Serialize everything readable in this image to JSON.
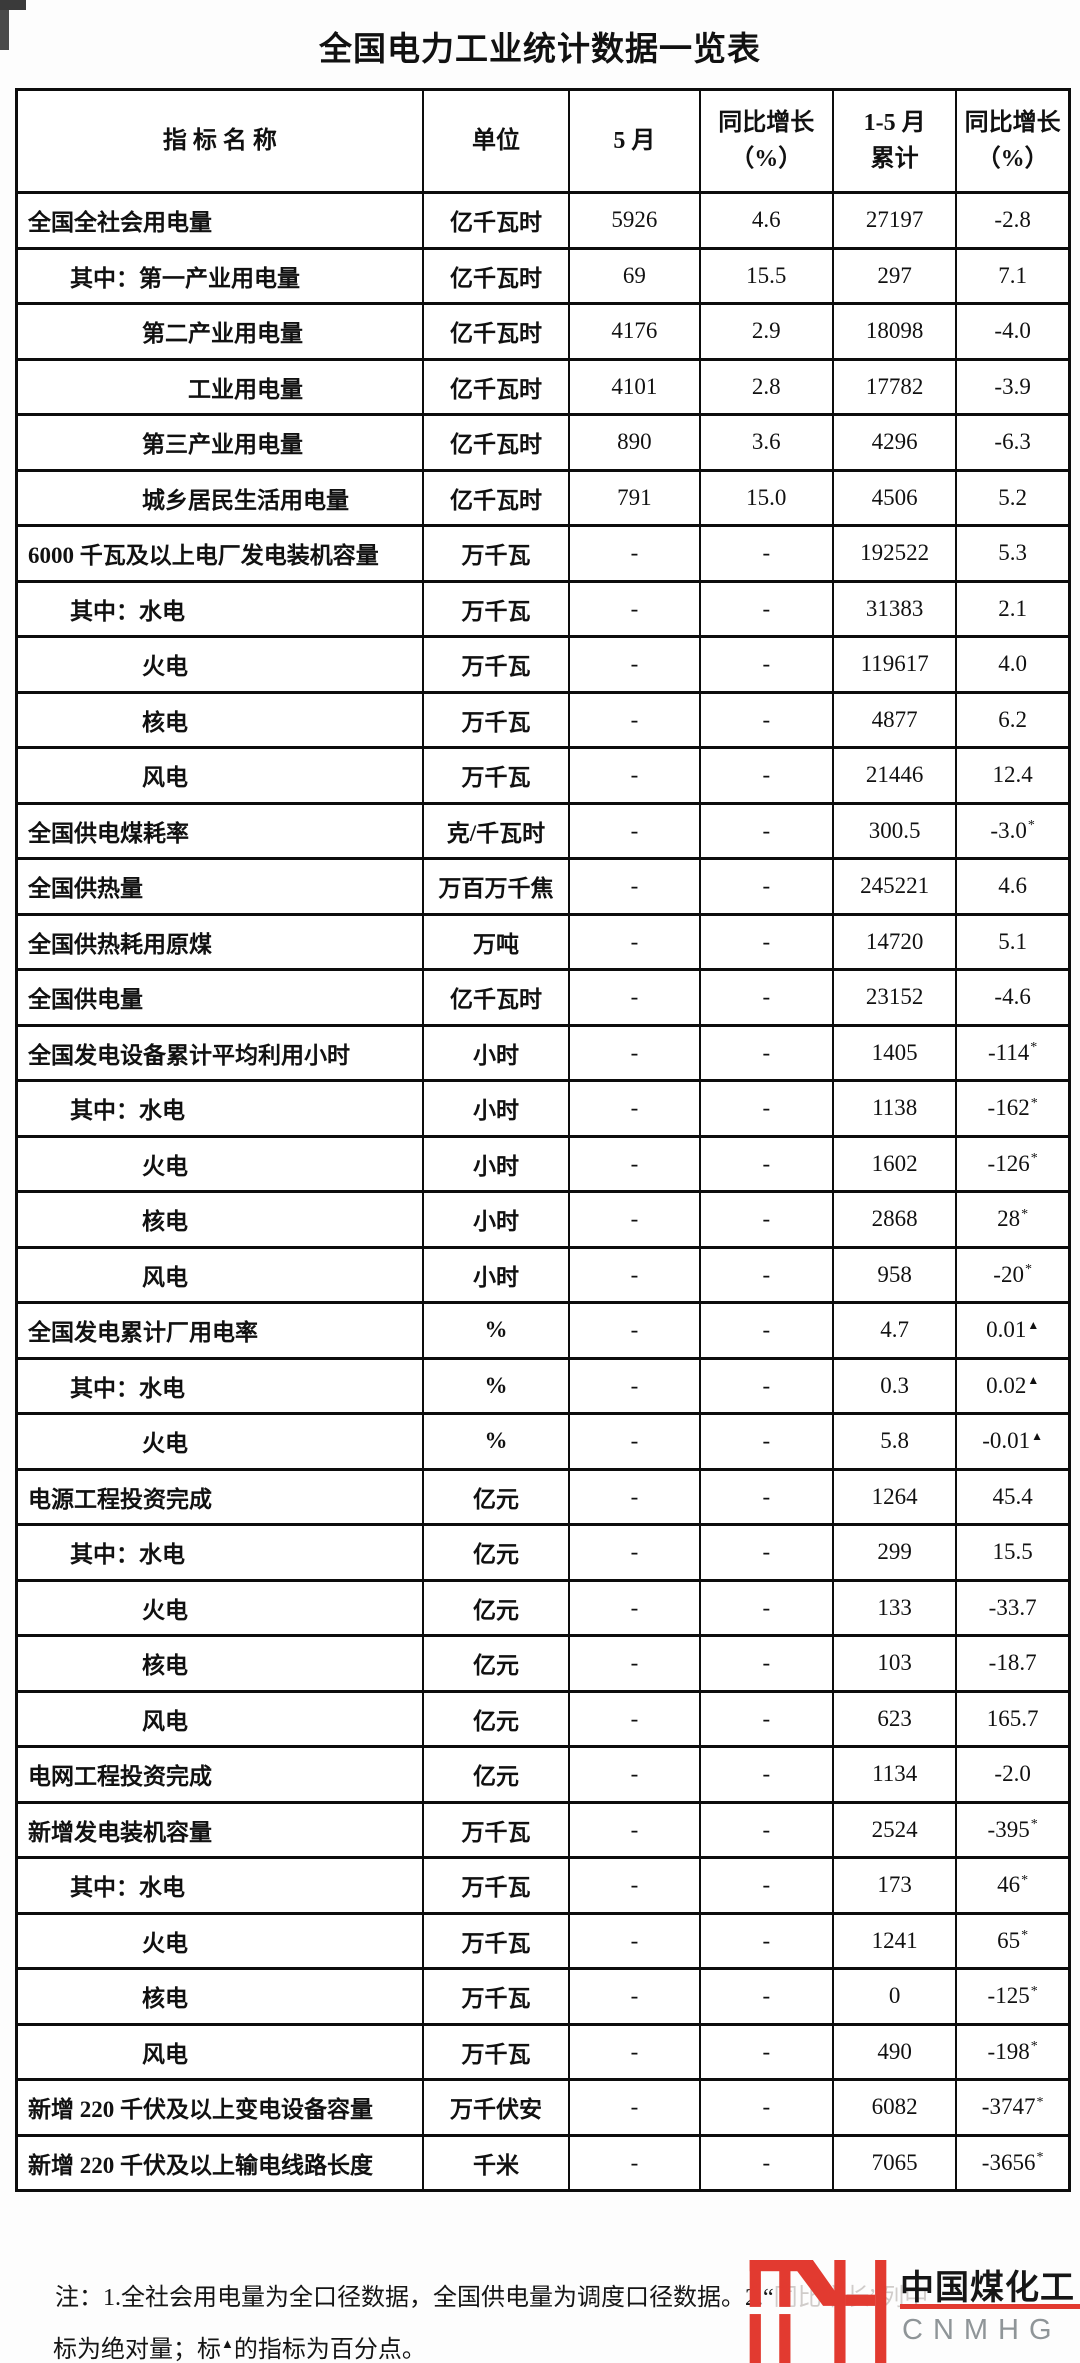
{
  "title": "全国电力工业统计数据一览表",
  "table": {
    "headers": {
      "name": "指  标  名  称",
      "unit": "单位",
      "may": "5 月",
      "yoy_may_l1": "同比增长",
      "yoy_may_l2": "（%）",
      "cum_l1": "1-5 月",
      "cum_l2": "累计",
      "yoy_cum_l1": "同比增长",
      "yoy_cum_l2": "（%）"
    },
    "rows": [
      {
        "name": "全国全社会用电量",
        "indent": 0,
        "unit": "亿千瓦时",
        "may": "5926",
        "yoy_may": "4.6",
        "cum": "27197",
        "yoy_cum": "-2.8",
        "sup": null
      },
      {
        "name": "其中：第一产业用电量",
        "indent": 1,
        "unit": "亿千瓦时",
        "may": "69",
        "yoy_may": "15.5",
        "cum": "297",
        "yoy_cum": "7.1",
        "sup": null
      },
      {
        "name": "第二产业用电量",
        "indent": 2,
        "unit": "亿千瓦时",
        "may": "4176",
        "yoy_may": "2.9",
        "cum": "18098",
        "yoy_cum": "-4.0",
        "sup": null
      },
      {
        "name": "工业用电量",
        "indent": 3,
        "unit": "亿千瓦时",
        "may": "4101",
        "yoy_may": "2.8",
        "cum": "17782",
        "yoy_cum": "-3.9",
        "sup": null
      },
      {
        "name": "第三产业用电量",
        "indent": 2,
        "unit": "亿千瓦时",
        "may": "890",
        "yoy_may": "3.6",
        "cum": "4296",
        "yoy_cum": "-6.3",
        "sup": null
      },
      {
        "name": "城乡居民生活用电量",
        "indent": 2,
        "unit": "亿千瓦时",
        "may": "791",
        "yoy_may": "15.0",
        "cum": "4506",
        "yoy_cum": "5.2",
        "sup": null
      },
      {
        "name": "6000 千瓦及以上电厂发电装机容量",
        "indent": 0,
        "unit": "万千瓦",
        "may": "-",
        "yoy_may": "-",
        "cum": "192522",
        "yoy_cum": "5.3",
        "sup": null
      },
      {
        "name": "其中：水电",
        "indent": 1,
        "unit": "万千瓦",
        "may": "-",
        "yoy_may": "-",
        "cum": "31383",
        "yoy_cum": "2.1",
        "sup": null
      },
      {
        "name": "火电",
        "indent": 2,
        "unit": "万千瓦",
        "may": "-",
        "yoy_may": "-",
        "cum": "119617",
        "yoy_cum": "4.0",
        "sup": null
      },
      {
        "name": "核电",
        "indent": 2,
        "unit": "万千瓦",
        "may": "-",
        "yoy_may": "-",
        "cum": "4877",
        "yoy_cum": "6.2",
        "sup": null
      },
      {
        "name": "风电",
        "indent": 2,
        "unit": "万千瓦",
        "may": "-",
        "yoy_may": "-",
        "cum": "21446",
        "yoy_cum": "12.4",
        "sup": null
      },
      {
        "name": "全国供电煤耗率",
        "indent": 0,
        "unit": "克/千瓦时",
        "may": "-",
        "yoy_may": "-",
        "cum": "300.5",
        "yoy_cum": "-3.0",
        "sup": "*"
      },
      {
        "name": "全国供热量",
        "indent": 0,
        "unit": "万百万千焦",
        "may": "-",
        "yoy_may": "-",
        "cum": "245221",
        "yoy_cum": "4.6",
        "sup": null
      },
      {
        "name": "全国供热耗用原煤",
        "indent": 0,
        "unit": "万吨",
        "may": "-",
        "yoy_may": "-",
        "cum": "14720",
        "yoy_cum": "5.1",
        "sup": null
      },
      {
        "name": "全国供电量",
        "indent": 0,
        "unit": "亿千瓦时",
        "may": "-",
        "yoy_may": "-",
        "cum": "23152",
        "yoy_cum": "-4.6",
        "sup": null
      },
      {
        "name": "全国发电设备累计平均利用小时",
        "indent": 0,
        "unit": "小时",
        "may": "-",
        "yoy_may": "-",
        "cum": "1405",
        "yoy_cum": "-114",
        "sup": "*"
      },
      {
        "name": "其中：水电",
        "indent": 1,
        "unit": "小时",
        "may": "-",
        "yoy_may": "-",
        "cum": "1138",
        "yoy_cum": "-162",
        "sup": "*"
      },
      {
        "name": "火电",
        "indent": 2,
        "unit": "小时",
        "may": "-",
        "yoy_may": "-",
        "cum": "1602",
        "yoy_cum": "-126",
        "sup": "*"
      },
      {
        "name": "核电",
        "indent": 2,
        "unit": "小时",
        "may": "-",
        "yoy_may": "-",
        "cum": "2868",
        "yoy_cum": "28",
        "sup": "*"
      },
      {
        "name": "风电",
        "indent": 2,
        "unit": "小时",
        "may": "-",
        "yoy_may": "-",
        "cum": "958",
        "yoy_cum": "-20",
        "sup": "*"
      },
      {
        "name": "全国发电累计厂用电率",
        "indent": 0,
        "unit": "%",
        "may": "-",
        "yoy_may": "-",
        "cum": "4.7",
        "yoy_cum": "0.01",
        "sup": "▲"
      },
      {
        "name": "其中：水电",
        "indent": 1,
        "unit": "%",
        "may": "-",
        "yoy_may": "-",
        "cum": "0.3",
        "yoy_cum": "0.02",
        "sup": "▲"
      },
      {
        "name": "火电",
        "indent": 2,
        "unit": "%",
        "may": "-",
        "yoy_may": "-",
        "cum": "5.8",
        "yoy_cum": "-0.01",
        "sup": "▲"
      },
      {
        "name": "电源工程投资完成",
        "indent": 0,
        "unit": "亿元",
        "may": "-",
        "yoy_may": "-",
        "cum": "1264",
        "yoy_cum": "45.4",
        "sup": null
      },
      {
        "name": "其中：水电",
        "indent": 1,
        "unit": "亿元",
        "may": "-",
        "yoy_may": "-",
        "cum": "299",
        "yoy_cum": "15.5",
        "sup": null
      },
      {
        "name": "火电",
        "indent": 2,
        "unit": "亿元",
        "may": "-",
        "yoy_may": "-",
        "cum": "133",
        "yoy_cum": "-33.7",
        "sup": null
      },
      {
        "name": "核电",
        "indent": 2,
        "unit": "亿元",
        "may": "-",
        "yoy_may": "-",
        "cum": "103",
        "yoy_cum": "-18.7",
        "sup": null
      },
      {
        "name": "风电",
        "indent": 2,
        "unit": "亿元",
        "may": "-",
        "yoy_may": "-",
        "cum": "623",
        "yoy_cum": "165.7",
        "sup": null
      },
      {
        "name": "电网工程投资完成",
        "indent": 0,
        "unit": "亿元",
        "may": "-",
        "yoy_may": "-",
        "cum": "1134",
        "yoy_cum": "-2.0",
        "sup": null
      },
      {
        "name": "新增发电装机容量",
        "indent": 0,
        "unit": "万千瓦",
        "may": "-",
        "yoy_may": "-",
        "cum": "2524",
        "yoy_cum": "-395",
        "sup": "*"
      },
      {
        "name": "其中：水电",
        "indent": 1,
        "unit": "万千瓦",
        "may": "-",
        "yoy_may": "-",
        "cum": "173",
        "yoy_cum": "46",
        "sup": "*"
      },
      {
        "name": "火电",
        "indent": 2,
        "unit": "万千瓦",
        "may": "-",
        "yoy_may": "-",
        "cum": "1241",
        "yoy_cum": "65",
        "sup": "*"
      },
      {
        "name": "核电",
        "indent": 2,
        "unit": "万千瓦",
        "may": "-",
        "yoy_may": "-",
        "cum": "0",
        "yoy_cum": "-125",
        "sup": "*"
      },
      {
        "name": "风电",
        "indent": 2,
        "unit": "万千瓦",
        "may": "-",
        "yoy_may": "-",
        "cum": "490",
        "yoy_cum": "-198",
        "sup": "*"
      },
      {
        "name": "新增 220 千伏及以上变电设备容量",
        "indent": 0,
        "unit": "万千伏安",
        "may": "-",
        "yoy_may": "-",
        "cum": "6082",
        "yoy_cum": "-3747",
        "sup": "*"
      },
      {
        "name": "新增 220 千伏及以上输电线路长度",
        "indent": 0,
        "unit": "千米",
        "may": "-",
        "yoy_may": "-",
        "cum": "7065",
        "yoy_cum": "-3656",
        "sup": "*"
      }
    ]
  },
  "note": {
    "line1_visible": "注：1.全社会用电量为全口径数据，全国供电量为调度口径数据。2.“",
    "line1_obscured": "同比增长”列中",
    "line2_pre": "标为绝对量；标",
    "line2_tri": "▲",
    "line2_post": "的指标为百分点。"
  },
  "logo": {
    "monogram": "MH-monogram",
    "cn_text": "中国煤化工",
    "en_text": "CNMHG",
    "red": "#e23a30",
    "gray": "#8f9598"
  }
}
